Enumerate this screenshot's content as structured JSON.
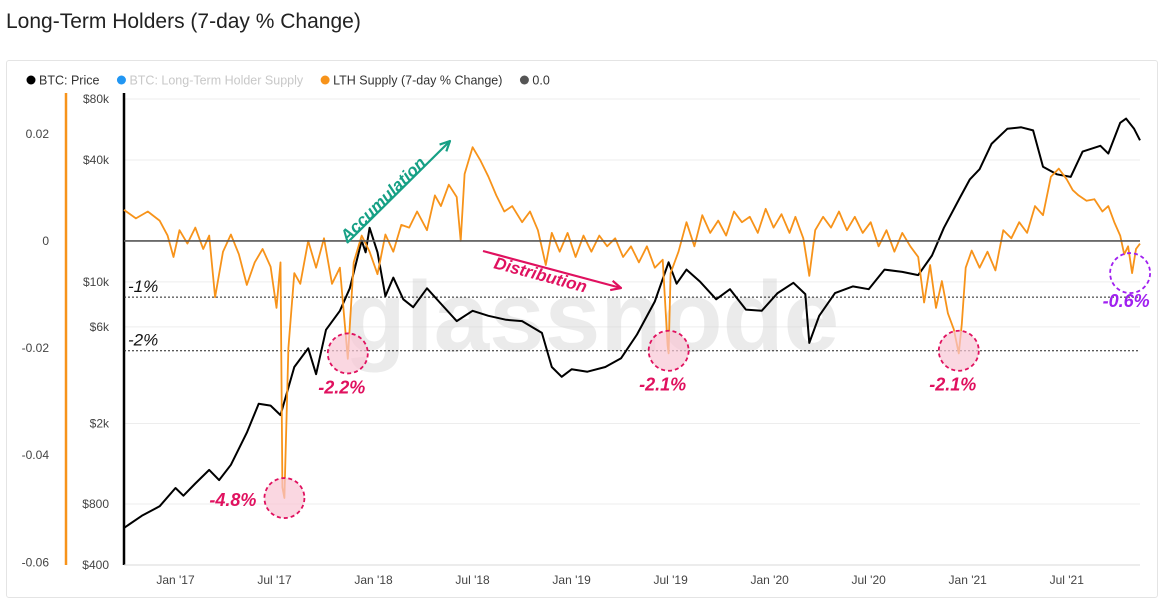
{
  "page_title": "Long-Term Holders (7-day % Change)",
  "watermark": "glassnode",
  "colors": {
    "price": "#000000",
    "supply": "#2196f3",
    "change": "#f7931a",
    "zero": "#555555",
    "annot_red": "#e0115f",
    "annot_green": "#16a085",
    "annot_purple": "#a020f0",
    "circle_fill": "#f8c6d4"
  },
  "chart_data": {
    "type": "line",
    "title": "Long-Term Holders (7-day % Change)",
    "legend": [
      {
        "label": "BTC: Price",
        "color": "#000000",
        "faded": false
      },
      {
        "label": "BTC: Long-Term Holder Supply",
        "color": "#2196f3",
        "faded": true
      },
      {
        "label": "LTH Supply (7-day % Change)",
        "color": "#f7931a",
        "faded": false
      },
      {
        "label": "0.0",
        "color": "#555555",
        "faded": false
      }
    ],
    "x_ticks": [
      {
        "label": "Jan '17",
        "t": 2017.0
      },
      {
        "label": "Jul '17",
        "t": 2017.5
      },
      {
        "label": "Jan '18",
        "t": 2018.0
      },
      {
        "label": "Jul '18",
        "t": 2018.5
      },
      {
        "label": "Jan '19",
        "t": 2019.0
      },
      {
        "label": "Jul '19",
        "t": 2019.5
      },
      {
        "label": "Jan '20",
        "t": 2020.0
      },
      {
        "label": "Jul '20",
        "t": 2020.5
      },
      {
        "label": "Jan '21",
        "t": 2021.0
      },
      {
        "label": "Jul '21",
        "t": 2021.5
      }
    ],
    "x_range": [
      2016.74,
      2021.87
    ],
    "left_axis": {
      "label": "LTH Supply (7-day % Change)",
      "ticks": [
        {
          "label": "0.02",
          "v": 0.02
        },
        {
          "label": "0",
          "v": 0.0
        },
        {
          "label": "-0.02",
          "v": -0.02
        },
        {
          "label": "-0.04",
          "v": -0.04
        },
        {
          "label": "-0.06",
          "v": -0.06
        }
      ],
      "range": [
        -0.0605,
        0.0265
      ]
    },
    "price_axis": {
      "scale": "log",
      "ticks": [
        {
          "label": "$80k",
          "v": 80000
        },
        {
          "label": "$40k",
          "v": 40000
        },
        {
          "label": "$10k",
          "v": 10000
        },
        {
          "label": "$6k",
          "v": 6000
        },
        {
          "label": "$2k",
          "v": 2000
        },
        {
          "label": "$800",
          "v": 800
        },
        {
          "label": "$400",
          "v": 400
        }
      ],
      "range": [
        400,
        80000
      ]
    },
    "series": [
      {
        "name": "BTC: Price",
        "axis": "price",
        "points": [
          [
            2016.74,
            610
          ],
          [
            2016.83,
            700
          ],
          [
            2016.92,
            780
          ],
          [
            2017.0,
            960
          ],
          [
            2017.04,
            880
          ],
          [
            2017.1,
            1010
          ],
          [
            2017.17,
            1180
          ],
          [
            2017.22,
            1050
          ],
          [
            2017.28,
            1250
          ],
          [
            2017.36,
            1800
          ],
          [
            2017.42,
            2500
          ],
          [
            2017.48,
            2450
          ],
          [
            2017.53,
            2200
          ],
          [
            2017.6,
            3800
          ],
          [
            2017.67,
            4700
          ],
          [
            2017.71,
            3500
          ],
          [
            2017.76,
            5800
          ],
          [
            2017.83,
            7200
          ],
          [
            2017.88,
            9300
          ],
          [
            2017.94,
            16000
          ],
          [
            2017.96,
            14000
          ],
          [
            2017.98,
            18500
          ],
          [
            2018.02,
            14000
          ],
          [
            2018.06,
            8500
          ],
          [
            2018.1,
            10500
          ],
          [
            2018.15,
            8200
          ],
          [
            2018.2,
            7500
          ],
          [
            2018.27,
            9300
          ],
          [
            2018.33,
            8000
          ],
          [
            2018.42,
            6400
          ],
          [
            2018.5,
            7200
          ],
          [
            2018.58,
            6800
          ],
          [
            2018.67,
            6500
          ],
          [
            2018.75,
            6400
          ],
          [
            2018.85,
            5600
          ],
          [
            2018.9,
            3800
          ],
          [
            2018.95,
            3400
          ],
          [
            2019.0,
            3700
          ],
          [
            2019.08,
            3600
          ],
          [
            2019.17,
            3800
          ],
          [
            2019.25,
            4200
          ],
          [
            2019.33,
            5500
          ],
          [
            2019.42,
            8000
          ],
          [
            2019.49,
            12500
          ],
          [
            2019.53,
            9800
          ],
          [
            2019.58,
            11500
          ],
          [
            2019.65,
            10000
          ],
          [
            2019.73,
            8200
          ],
          [
            2019.8,
            9200
          ],
          [
            2019.88,
            7300
          ],
          [
            2019.96,
            7200
          ],
          [
            2020.04,
            8800
          ],
          [
            2020.12,
            9900
          ],
          [
            2020.18,
            8700
          ],
          [
            2020.2,
            5000
          ],
          [
            2020.25,
            6800
          ],
          [
            2020.33,
            8800
          ],
          [
            2020.42,
            9500
          ],
          [
            2020.5,
            9200
          ],
          [
            2020.58,
            11500
          ],
          [
            2020.67,
            11200
          ],
          [
            2020.75,
            10800
          ],
          [
            2020.82,
            13500
          ],
          [
            2020.88,
            18500
          ],
          [
            2020.96,
            26000
          ],
          [
            2021.01,
            32000
          ],
          [
            2021.06,
            36000
          ],
          [
            2021.12,
            48000
          ],
          [
            2021.2,
            57000
          ],
          [
            2021.27,
            58000
          ],
          [
            2021.33,
            56000
          ],
          [
            2021.38,
            37000
          ],
          [
            2021.45,
            34000
          ],
          [
            2021.52,
            33000
          ],
          [
            2021.58,
            44000
          ],
          [
            2021.67,
            47000
          ],
          [
            2021.71,
            43000
          ],
          [
            2021.77,
            61000
          ],
          [
            2021.8,
            64000
          ],
          [
            2021.84,
            57000
          ],
          [
            2021.87,
            50000
          ]
        ]
      },
      {
        "name": "LTH Supply (7-day % Change)",
        "axis": "left",
        "points": [
          [
            2016.74,
            0.0058
          ],
          [
            2016.8,
            0.0042
          ],
          [
            2016.86,
            0.0055
          ],
          [
            2016.92,
            0.0038
          ],
          [
            2016.96,
            0.001
          ],
          [
            2016.99,
            -0.003
          ],
          [
            2017.02,
            0.002
          ],
          [
            2017.06,
            -0.0005
          ],
          [
            2017.1,
            0.0025
          ],
          [
            2017.14,
            -0.0015
          ],
          [
            2017.17,
            0.001
          ],
          [
            2017.2,
            -0.0105
          ],
          [
            2017.24,
            -0.002
          ],
          [
            2017.28,
            0.0012
          ],
          [
            2017.32,
            -0.0025
          ],
          [
            2017.36,
            -0.0082
          ],
          [
            2017.4,
            -0.004
          ],
          [
            2017.44,
            -0.0015
          ],
          [
            2017.48,
            -0.0048
          ],
          [
            2017.51,
            -0.0125
          ],
          [
            2017.53,
            -0.004
          ],
          [
            2017.54,
            -0.046
          ],
          [
            2017.55,
            -0.048
          ],
          [
            2017.57,
            -0.02
          ],
          [
            2017.6,
            -0.006
          ],
          [
            2017.63,
            -0.008
          ],
          [
            2017.67,
            0.0
          ],
          [
            2017.71,
            -0.005
          ],
          [
            2017.75,
            0.0005
          ],
          [
            2017.79,
            -0.008
          ],
          [
            2017.83,
            -0.005
          ],
          [
            2017.87,
            -0.022
          ],
          [
            2017.9,
            -0.004
          ],
          [
            2017.94,
            0.001
          ],
          [
            2017.98,
            -0.002
          ],
          [
            2018.02,
            -0.0062
          ],
          [
            2018.06,
            0.0012
          ],
          [
            2018.1,
            -0.002
          ],
          [
            2018.14,
            0.003
          ],
          [
            2018.18,
            0.0025
          ],
          [
            2018.22,
            0.0055
          ],
          [
            2018.27,
            0.002
          ],
          [
            2018.31,
            0.0085
          ],
          [
            2018.34,
            0.0065
          ],
          [
            2018.38,
            0.0105
          ],
          [
            2018.42,
            0.0082
          ],
          [
            2018.44,
            0.0
          ],
          [
            2018.46,
            0.0125
          ],
          [
            2018.5,
            0.0175
          ],
          [
            2018.54,
            0.015
          ],
          [
            2018.58,
            0.012
          ],
          [
            2018.62,
            0.0085
          ],
          [
            2018.66,
            0.0055
          ],
          [
            2018.7,
            0.0065
          ],
          [
            2018.75,
            0.0035
          ],
          [
            2018.79,
            0.0055
          ],
          [
            2018.83,
            0.002
          ],
          [
            2018.87,
            -0.0045
          ],
          [
            2018.9,
            0.0015
          ],
          [
            2018.94,
            -0.002
          ],
          [
            2018.98,
            0.0015
          ],
          [
            2019.02,
            -0.003
          ],
          [
            2019.06,
            0.001
          ],
          [
            2019.1,
            -0.002
          ],
          [
            2019.14,
            0.001
          ],
          [
            2019.18,
            -0.001
          ],
          [
            2019.22,
            0.0005
          ],
          [
            2019.26,
            -0.003
          ],
          [
            2019.3,
            -0.001
          ],
          [
            2019.34,
            -0.004
          ],
          [
            2019.38,
            -0.001
          ],
          [
            2019.42,
            -0.005
          ],
          [
            2019.46,
            -0.0035
          ],
          [
            2019.485,
            -0.0195
          ],
          [
            2019.49,
            -0.021
          ],
          [
            2019.5,
            -0.006
          ],
          [
            2019.54,
            -0.002
          ],
          [
            2019.58,
            0.0035
          ],
          [
            2019.62,
            -0.001
          ],
          [
            2019.66,
            0.0048
          ],
          [
            2019.7,
            0.0015
          ],
          [
            2019.74,
            0.0038
          ],
          [
            2019.78,
            0.001
          ],
          [
            2019.82,
            0.0055
          ],
          [
            2019.86,
            0.0035
          ],
          [
            2019.9,
            0.0045
          ],
          [
            2019.94,
            0.0015
          ],
          [
            2019.98,
            0.006
          ],
          [
            2020.02,
            0.0025
          ],
          [
            2020.06,
            0.005
          ],
          [
            2020.1,
            0.0015
          ],
          [
            2020.13,
            0.0045
          ],
          [
            2020.17,
            0.0005
          ],
          [
            2020.2,
            -0.0065
          ],
          [
            2020.23,
            0.002
          ],
          [
            2020.27,
            0.0045
          ],
          [
            2020.31,
            0.0025
          ],
          [
            2020.35,
            0.0055
          ],
          [
            2020.39,
            0.002
          ],
          [
            2020.43,
            0.0045
          ],
          [
            2020.47,
            0.0015
          ],
          [
            2020.51,
            0.0035
          ],
          [
            2020.55,
            -0.001
          ],
          [
            2020.59,
            0.002
          ],
          [
            2020.63,
            -0.002
          ],
          [
            2020.67,
            0.0015
          ],
          [
            2020.71,
            -0.001
          ],
          [
            2020.75,
            -0.003
          ],
          [
            2020.78,
            -0.0115
          ],
          [
            2020.81,
            -0.0045
          ],
          [
            2020.84,
            -0.0125
          ],
          [
            2020.87,
            -0.0075
          ],
          [
            2020.9,
            -0.0135
          ],
          [
            2020.93,
            -0.0165
          ],
          [
            2020.955,
            -0.021
          ],
          [
            2020.97,
            -0.0155
          ],
          [
            2020.99,
            -0.005
          ],
          [
            2021.02,
            -0.0018
          ],
          [
            2021.06,
            -0.005
          ],
          [
            2021.1,
            -0.002
          ],
          [
            2021.14,
            -0.0055
          ],
          [
            2021.18,
            0.002
          ],
          [
            2021.22,
            0.0005
          ],
          [
            2021.26,
            0.0035
          ],
          [
            2021.3,
            0.0015
          ],
          [
            2021.34,
            0.0065
          ],
          [
            2021.38,
            0.0048
          ],
          [
            2021.42,
            0.012
          ],
          [
            2021.46,
            0.0135
          ],
          [
            2021.5,
            0.0115
          ],
          [
            2021.53,
            0.0095
          ],
          [
            2021.56,
            0.0085
          ],
          [
            2021.6,
            0.0075
          ],
          [
            2021.64,
            0.0078
          ],
          [
            2021.68,
            0.0055
          ],
          [
            2021.71,
            0.0065
          ],
          [
            2021.74,
            0.0035
          ],
          [
            2021.77,
            0.001
          ],
          [
            2021.79,
            -0.0025
          ],
          [
            2021.81,
            -0.001
          ],
          [
            2021.83,
            -0.006
          ],
          [
            2021.85,
            -0.0015
          ],
          [
            2021.87,
            -0.0005
          ]
        ]
      },
      {
        "name": "0.0",
        "axis": "left",
        "value": 0.0
      }
    ],
    "reference_lines": [
      {
        "label": "-1%",
        "value": -0.0105
      },
      {
        "label": "-2%",
        "value": -0.0205
      }
    ],
    "annotations": [
      {
        "text": "Accumulation",
        "kind": "arrow-text",
        "color": "green"
      },
      {
        "text": "Distribution",
        "kind": "arrow-text",
        "color": "red"
      },
      {
        "text": "-4.8%",
        "kind": "circle",
        "t": 2017.55,
        "v": -0.048,
        "color": "red"
      },
      {
        "text": "-2.2%",
        "kind": "circle",
        "t": 2017.87,
        "v": -0.021,
        "color": "red"
      },
      {
        "text": "-2.1%",
        "kind": "circle",
        "t": 2019.49,
        "v": -0.0205,
        "color": "red"
      },
      {
        "text": "-2.1%",
        "kind": "circle",
        "t": 2020.955,
        "v": -0.0205,
        "color": "red"
      },
      {
        "text": "-0.6%",
        "kind": "circle",
        "t": 2021.82,
        "v": -0.006,
        "color": "purple"
      }
    ]
  }
}
